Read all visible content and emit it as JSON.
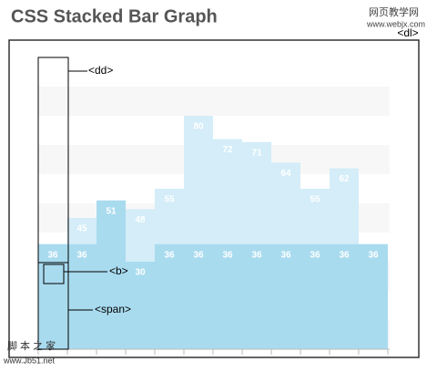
{
  "chart_data": {
    "type": "bar",
    "title": "CSS Stacked Bar Graph",
    "ylim": [
      0,
      100
    ],
    "series": [
      {
        "color": "#d4edf8",
        "values": [
          36,
          45,
          41,
          48,
          55,
          80,
          72,
          71,
          64,
          55,
          62,
          36
        ]
      },
      {
        "color": "#a9dbef",
        "values": [
          36,
          36,
          51,
          30,
          36,
          36,
          36,
          36,
          36,
          36,
          36,
          36
        ]
      }
    ],
    "annotations": {
      "dl": "<dl>",
      "dd": "<dd>",
      "b": "<b>",
      "span": "<span>"
    },
    "watermarks": {
      "top": [
        "网页教学网",
        "www.webjx.com"
      ],
      "bottom": [
        "脚 本 之 家",
        "www.Jb51.net"
      ]
    }
  }
}
